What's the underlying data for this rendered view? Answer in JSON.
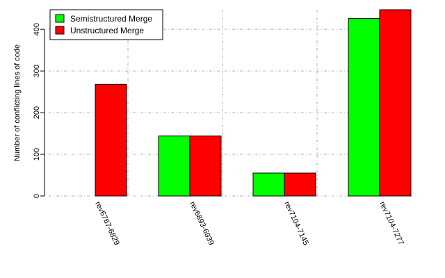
{
  "chart_data": {
    "type": "bar",
    "title": "",
    "xlabel": "",
    "ylabel": "Number of conflicting lines of code",
    "categories": [
      "rev6767-6829",
      "rev6893-6939",
      "rev7104-7145",
      "rev7104-7277"
    ],
    "series": [
      {
        "name": "Semistructured Merge",
        "color": "#00ff00",
        "values": [
          0,
          144,
          55,
          426
        ]
      },
      {
        "name": "Unstructured Merge",
        "color": "#ff0000",
        "values": [
          268,
          144,
          55,
          447
        ]
      }
    ],
    "ylim": [
      0,
      447
    ],
    "yticks": [
      0,
      100,
      200,
      300,
      400
    ],
    "grid": true,
    "legend_position": "top-left"
  }
}
